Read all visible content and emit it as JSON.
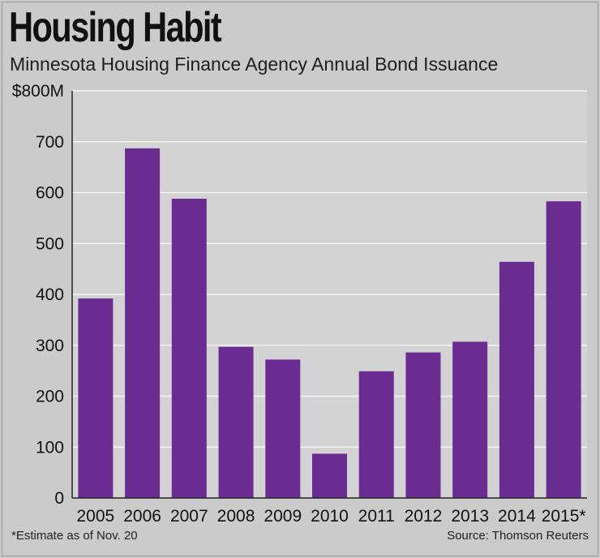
{
  "header": {
    "title": "Housing Habit",
    "subtitle": "Minnesota Housing Finance Agency Annual Bond Issuance"
  },
  "footer": {
    "footnote": "*Estimate as of Nov. 20",
    "source": "Source: Thomson Reuters"
  },
  "colors": {
    "bar": "#6a2c91",
    "plot_background": "#d3d3d3",
    "gridline": "#f4f4f4"
  },
  "chart_data": {
    "type": "bar",
    "title": "Housing Habit",
    "subtitle": "Minnesota Housing Finance Agency Annual Bond Issuance",
    "xlabel": "",
    "ylabel": "",
    "categories": [
      "2005",
      "2006",
      "2007",
      "2008",
      "2009",
      "2010",
      "2011",
      "2012",
      "2013",
      "2014",
      "2015*"
    ],
    "values": [
      392,
      687,
      588,
      297,
      272,
      87,
      249,
      286,
      307,
      464,
      583
    ],
    "unit": "$M",
    "ylim": [
      0,
      800
    ],
    "yticks": [
      0,
      100,
      200,
      300,
      400,
      500,
      600,
      700,
      800
    ],
    "ytick_labels": [
      "0",
      "100",
      "200",
      "300",
      "400",
      "500",
      "600",
      "700",
      "$800M"
    ],
    "grid": true,
    "legend": "none"
  }
}
